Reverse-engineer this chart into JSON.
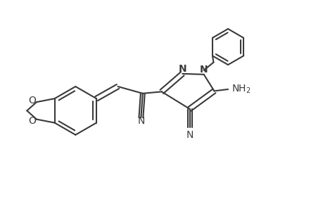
{
  "line_color": "#3a3a3a",
  "line_width": 1.5,
  "bg_color": "#ffffff",
  "font_size": 9,
  "figsize": [
    4.6,
    3.0
  ],
  "dpi": 100,
  "xlim": [
    0,
    9.2
  ],
  "ylim": [
    0,
    6.0
  ]
}
